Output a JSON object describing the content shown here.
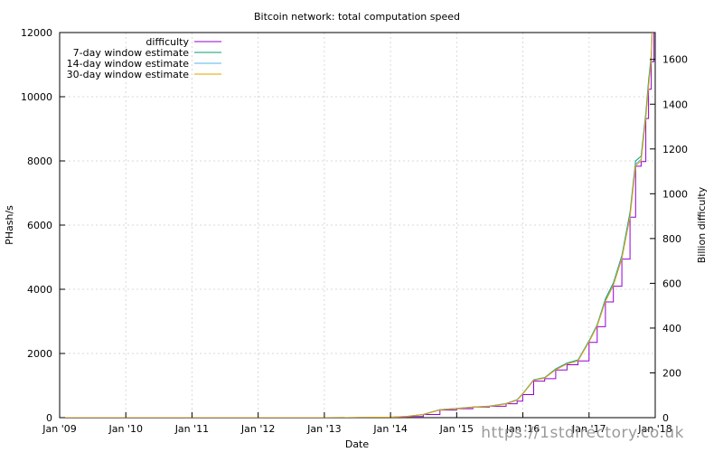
{
  "chart_data": {
    "type": "line",
    "title": "Bitcoin network: total computation speed",
    "xlabel": "Date",
    "ylabel": "PHash/s",
    "y2label": "Billion difficulty",
    "x_ticks": [
      "Jan '09",
      "Jan '10",
      "Jan '11",
      "Jan '12",
      "Jan '13",
      "Jan '14",
      "Jan '15",
      "Jan '16",
      "Jan '17",
      "Jan '18"
    ],
    "xlim": [
      "2009-01-01",
      "2018-01-01"
    ],
    "ylim": [
      0,
      12000
    ],
    "y_ticks": [
      0,
      2000,
      4000,
      6000,
      8000,
      10000,
      12000
    ],
    "y2lim": [
      0,
      1720
    ],
    "y2_ticks": [
      0,
      200,
      400,
      600,
      800,
      1000,
      1200,
      1400,
      1600
    ],
    "grid": true,
    "legend_position": "top-left",
    "series": [
      {
        "name": "difficulty",
        "axis": "right",
        "step": true,
        "color": "#9400d3",
        "x": [
          "2009-01-01",
          "2013-01-01",
          "2013-07-01",
          "2014-01-01",
          "2014-04-01",
          "2014-07-01",
          "2014-10-01",
          "2015-01-01",
          "2015-04-01",
          "2015-07-01",
          "2015-10-01",
          "2015-12-01",
          "2016-01-01",
          "2016-03-01",
          "2016-05-01",
          "2016-07-01",
          "2016-09-01",
          "2016-11-01",
          "2017-01-01",
          "2017-02-15",
          "2017-04-01",
          "2017-05-15",
          "2017-07-01",
          "2017-08-15",
          "2017-09-15",
          "2017-10-15",
          "2017-11-10",
          "2017-11-25",
          "2017-12-10",
          "2017-12-25"
        ],
        "values": [
          0,
          0,
          0.4,
          2,
          5,
          14,
          34,
          40,
          47,
          51,
          62,
          74,
          103,
          163,
          174,
          213,
          236,
          253,
          336,
          406,
          517,
          587,
          708,
          895,
          1123,
          1144,
          1336,
          1467,
          1590,
          1935
        ]
      },
      {
        "name": "7-day window estimate",
        "axis": "left",
        "color": "#009e73",
        "x": [
          "2009-01-01",
          "2013-01-01",
          "2013-07-01",
          "2014-01-01",
          "2014-04-01",
          "2014-07-01",
          "2014-10-01",
          "2015-01-01",
          "2015-04-01",
          "2015-07-01",
          "2015-10-01",
          "2015-12-01",
          "2016-01-01",
          "2016-03-01",
          "2016-05-01",
          "2016-07-01",
          "2016-09-01",
          "2016-11-01",
          "2017-01-01",
          "2017-02-15",
          "2017-04-01",
          "2017-05-15",
          "2017-07-01",
          "2017-08-15",
          "2017-09-15",
          "2017-10-15",
          "2017-11-10",
          "2017-11-25",
          "2017-12-10",
          "2017-12-25"
        ],
        "values": [
          0,
          0,
          3,
          15,
          40,
          100,
          250,
          290,
          330,
          360,
          440,
          560,
          750,
          1180,
          1250,
          1520,
          1700,
          1800,
          2400,
          2900,
          3700,
          4200,
          5050,
          6400,
          8000,
          8150,
          9500,
          10500,
          11300,
          13800
        ]
      },
      {
        "name": "14-day window estimate",
        "axis": "left",
        "color": "#56b4e9",
        "x": [
          "2009-01-01",
          "2013-01-01",
          "2013-07-01",
          "2014-01-01",
          "2014-04-01",
          "2014-07-01",
          "2014-10-01",
          "2015-01-01",
          "2015-04-01",
          "2015-07-01",
          "2015-10-01",
          "2015-12-01",
          "2016-01-01",
          "2016-03-01",
          "2016-05-01",
          "2016-07-01",
          "2016-09-01",
          "2016-11-01",
          "2017-01-01",
          "2017-02-15",
          "2017-04-01",
          "2017-05-15",
          "2017-07-01",
          "2017-08-15",
          "2017-09-15",
          "2017-10-15",
          "2017-11-10",
          "2017-11-25",
          "2017-12-10",
          "2017-12-25"
        ],
        "values": [
          0,
          0,
          3,
          15,
          40,
          98,
          245,
          285,
          325,
          355,
          435,
          550,
          740,
          1170,
          1240,
          1500,
          1680,
          1780,
          2380,
          2870,
          3650,
          4150,
          5000,
          6300,
          7900,
          8050,
          9400,
          10350,
          11200,
          13600
        ]
      },
      {
        "name": "30-day window estimate",
        "axis": "left",
        "color": "#e69f00",
        "x": [
          "2009-01-01",
          "2013-01-01",
          "2013-07-01",
          "2014-01-01",
          "2014-04-01",
          "2014-07-01",
          "2014-10-01",
          "2015-01-01",
          "2015-04-01",
          "2015-07-01",
          "2015-10-01",
          "2015-12-01",
          "2016-01-01",
          "2016-03-01",
          "2016-05-01",
          "2016-07-01",
          "2016-09-01",
          "2016-11-01",
          "2017-01-01",
          "2017-02-15",
          "2017-04-01",
          "2017-05-15",
          "2017-07-01",
          "2017-08-15",
          "2017-09-15",
          "2017-10-15",
          "2017-11-10",
          "2017-11-25",
          "2017-12-10",
          "2017-12-25"
        ],
        "values": [
          0,
          0,
          3,
          14,
          38,
          95,
          240,
          280,
          320,
          350,
          430,
          545,
          730,
          1160,
          1230,
          1490,
          1670,
          1770,
          2360,
          2850,
          3620,
          4120,
          4950,
          6250,
          7850,
          8000,
          9350,
          10300,
          11150,
          13500
        ]
      }
    ]
  },
  "watermark": "https://1stdirectory.co.uk"
}
